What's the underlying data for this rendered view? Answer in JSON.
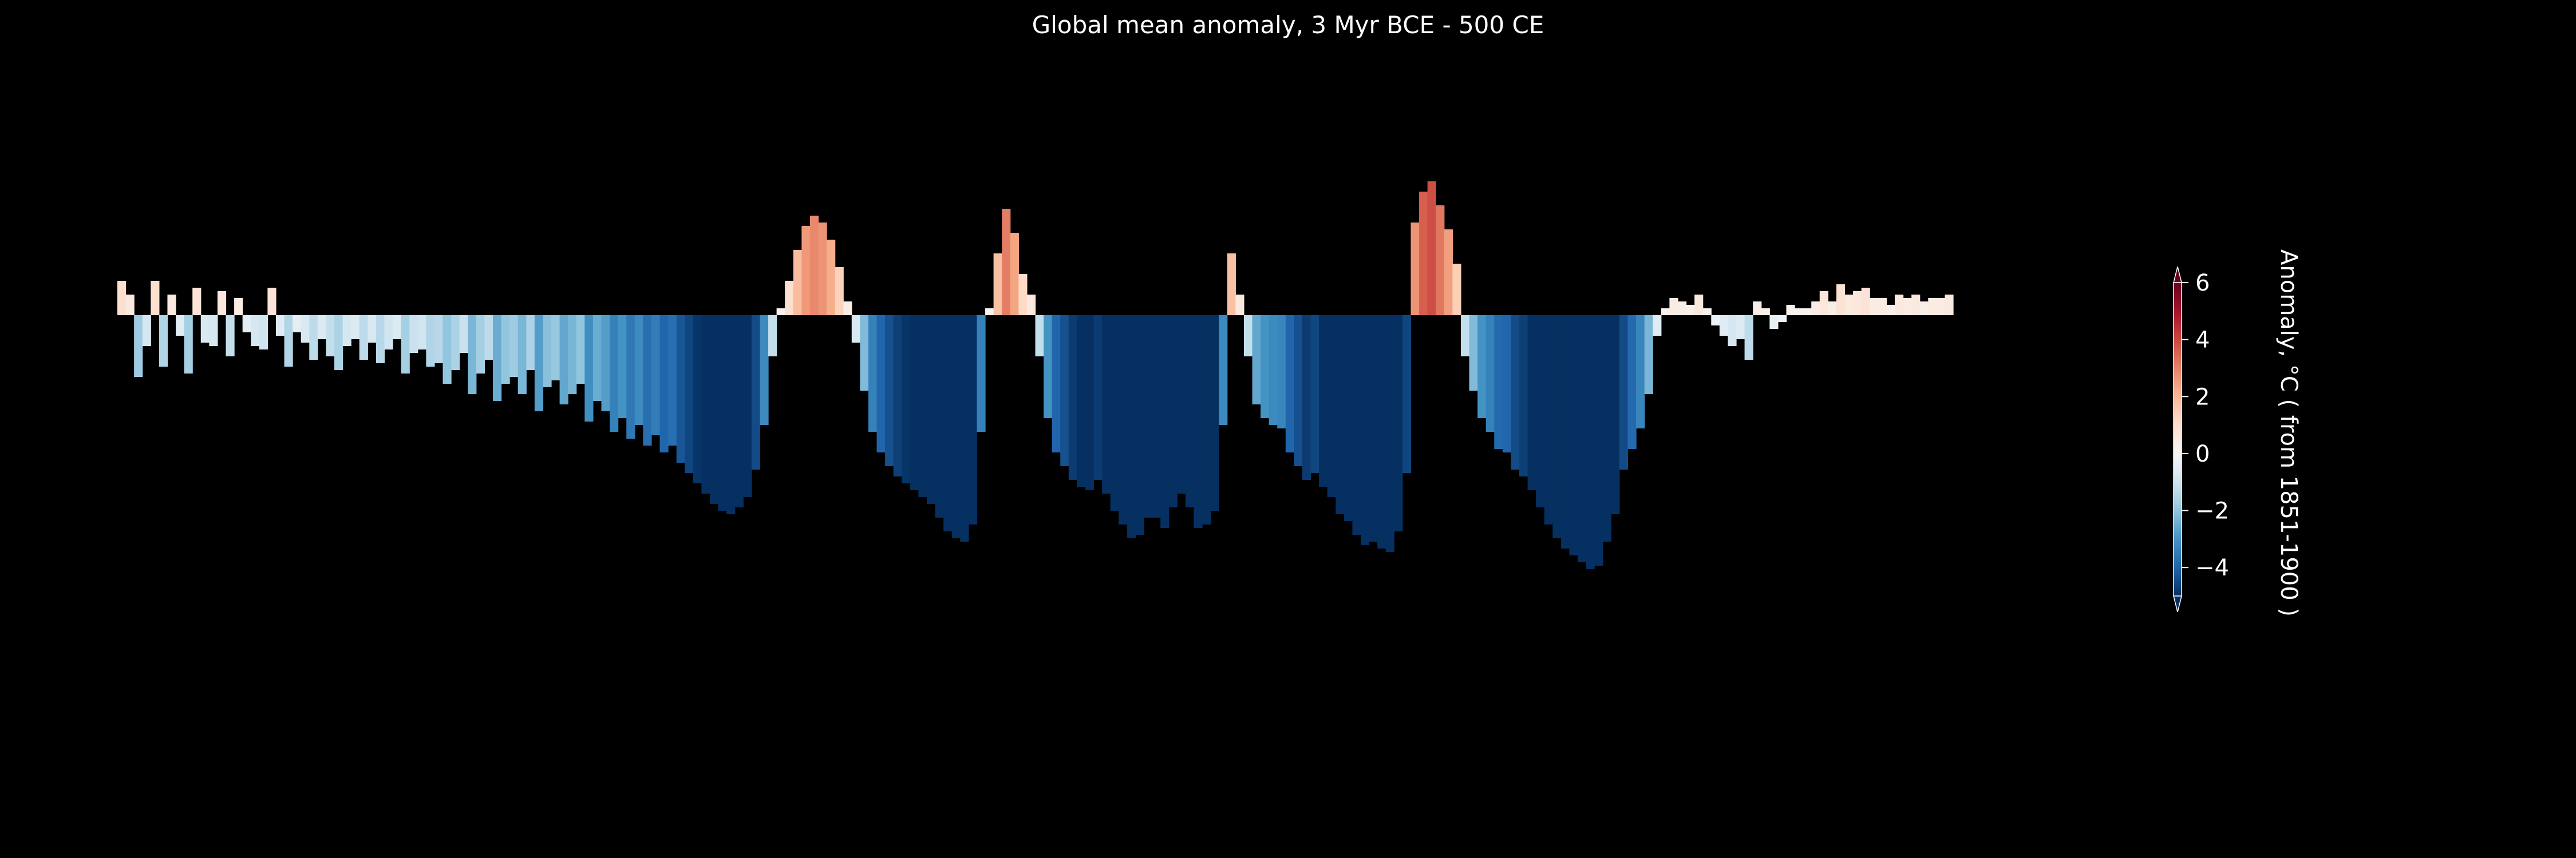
{
  "chart_data": {
    "type": "bar",
    "title": "Global mean anomaly, 3 Myr BCE - 500 CE",
    "xlabel": "",
    "ylabel": "",
    "x_axis_visible": false,
    "y_axis_visible": false,
    "grid": false,
    "background": "#000000",
    "ylim": [
      -8.5,
      6.5
    ],
    "note_values": "Annual anomalies are approximate readings from the bar heights; bar colour encodes the same anomaly on the colourbar scale.",
    "values": [
      1.0,
      0.6,
      -1.8,
      -0.9,
      1.0,
      -1.5,
      0.6,
      -0.6,
      -1.7,
      0.8,
      -0.8,
      -0.9,
      0.7,
      -1.2,
      0.5,
      -0.5,
      -0.9,
      -1.0,
      0.8,
      -0.6,
      -1.5,
      -0.5,
      -0.8,
      -1.3,
      -0.7,
      -1.2,
      -1.6,
      -0.9,
      -0.7,
      -1.3,
      -0.8,
      -1.4,
      -1.0,
      -0.7,
      -1.7,
      -1.1,
      -1.0,
      -1.5,
      -1.4,
      -2.0,
      -1.6,
      -1.1,
      -2.3,
      -1.7,
      -1.3,
      -2.5,
      -2.0,
      -1.8,
      -2.3,
      -1.6,
      -2.8,
      -2.1,
      -1.9,
      -2.6,
      -2.3,
      -2.0,
      -3.1,
      -2.5,
      -2.8,
      -3.4,
      -3.0,
      -3.6,
      -3.2,
      -3.8,
      -3.5,
      -4.0,
      -3.8,
      -4.3,
      -4.6,
      -4.9,
      -5.2,
      -5.5,
      -5.7,
      -5.8,
      -5.6,
      -5.3,
      -4.5,
      -3.2,
      -1.2,
      0.2,
      1.0,
      1.9,
      2.6,
      2.9,
      2.7,
      2.2,
      1.4,
      0.4,
      -0.8,
      -2.2,
      -3.4,
      -4.0,
      -4.4,
      -4.7,
      -4.9,
      -5.1,
      -5.3,
      -5.5,
      -5.9,
      -6.3,
      -6.5,
      -6.6,
      -6.1,
      -3.4,
      0.2,
      1.8,
      3.1,
      2.4,
      1.2,
      0.6,
      -1.2,
      -3.0,
      -4.0,
      -4.4,
      -4.8,
      -5.0,
      -5.1,
      -4.8,
      -5.2,
      -5.7,
      -6.1,
      -6.5,
      -6.4,
      -5.9,
      -5.9,
      -6.2,
      -5.6,
      -5.2,
      -5.6,
      -6.2,
      -6.1,
      -5.7,
      -3.2,
      1.8,
      0.6,
      -1.2,
      -2.6,
      -3.0,
      -3.2,
      -3.3,
      -4.0,
      -4.4,
      -4.8,
      -4.6,
      -5.0,
      -5.3,
      -5.8,
      -6.0,
      -6.4,
      -6.7,
      -6.6,
      -6.8,
      -6.9,
      -6.3,
      -4.6,
      2.7,
      3.6,
      3.9,
      3.2,
      2.5,
      1.5,
      -1.2,
      -2.2,
      -3.0,
      -3.4,
      -3.9,
      -4.0,
      -4.5,
      -4.7,
      -5.1,
      -5.6,
      -6.1,
      -6.5,
      -6.8,
      -7.0,
      -7.2,
      -7.4,
      -7.3,
      -6.6,
      -5.8,
      -4.5,
      -3.9,
      -3.3,
      -2.3,
      -0.6,
      0.2,
      0.5,
      0.4,
      0.3,
      0.6,
      0.2,
      -0.3,
      -0.6,
      -0.9,
      -0.7,
      -1.3,
      0.4,
      0.2,
      -0.4,
      -0.2,
      0.3,
      0.2,
      0.2,
      0.4,
      0.7,
      0.4,
      0.9,
      0.6,
      0.7,
      0.8,
      0.5,
      0.5,
      0.3,
      0.6,
      0.5,
      0.6,
      0.4,
      0.5,
      0.5,
      0.6
    ],
    "colorbar": {
      "colormap": "RdBu_r",
      "vmin": -5,
      "vmax": 6,
      "extend": "both",
      "ticks": [
        6,
        4,
        2,
        0,
        -2,
        -4
      ],
      "tick_labels": [
        "6",
        "4",
        "2",
        "0",
        "−2",
        "−4"
      ],
      "label": "Anomaly, °C ( from 1851-1900 )"
    }
  }
}
